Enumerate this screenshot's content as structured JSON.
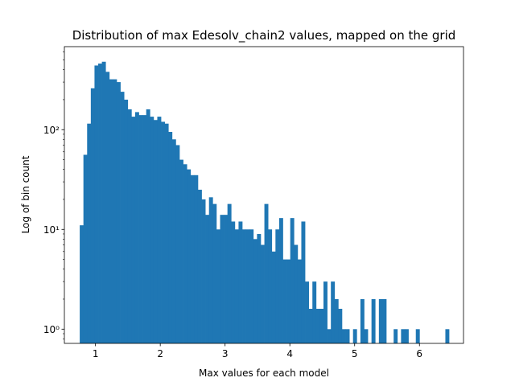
{
  "chart_data": {
    "type": "bar",
    "title": "Distribution of max Edesolv_chain2 values, mapped on the grid",
    "xlabel": "Max values for each model",
    "ylabel": "Log of bin count",
    "xlim": [
      0.52,
      6.68
    ],
    "ylim": [
      0.72,
      680
    ],
    "yscale": "log",
    "color": "#1f77b4",
    "grid": false,
    "xticks": [
      1,
      2,
      3,
      4,
      5,
      6
    ],
    "xtick_labels": [
      "1",
      "2",
      "3",
      "4",
      "5",
      "6"
    ],
    "yticks": [
      1,
      10,
      100
    ],
    "ytick_labels": [
      "10⁰",
      "10¹",
      "10²"
    ],
    "bin_edges": [
      0.757,
      0.814,
      0.871,
      0.928,
      0.985,
      1.042,
      1.099,
      1.156,
      1.213,
      1.27,
      1.327,
      1.384,
      1.441,
      1.498,
      1.555,
      1.612,
      1.669,
      1.726,
      1.783,
      1.84,
      1.897,
      1.954,
      2.011,
      2.068,
      2.125,
      2.182,
      2.239,
      2.296,
      2.353,
      2.41,
      2.467,
      2.524,
      2.581,
      2.638,
      2.695,
      2.752,
      2.809,
      2.866,
      2.923,
      2.98,
      3.037,
      3.094,
      3.151,
      3.208,
      3.265,
      3.322,
      3.379,
      3.436,
      3.493,
      3.55,
      3.607,
      3.664,
      3.721,
      3.778,
      3.835,
      3.892,
      3.949,
      4.006,
      4.063,
      4.12,
      4.177,
      4.234,
      4.291,
      4.348,
      4.405,
      4.462,
      4.519,
      4.576,
      4.633,
      4.69,
      4.747,
      4.804,
      4.861,
      4.918,
      4.975,
      5.032,
      5.089,
      5.146,
      5.203,
      5.26,
      5.317,
      5.374,
      5.431,
      5.488,
      5.545,
      5.602,
      5.659,
      5.716,
      5.773,
      5.83,
      5.887,
      5.944,
      6.001,
      6.058,
      6.115,
      6.172,
      6.229,
      6.286,
      6.343,
      6.4,
      6.457
    ],
    "counts": [
      11,
      56,
      115,
      260,
      440,
      460,
      480,
      380,
      320,
      320,
      300,
      240,
      200,
      160,
      135,
      150,
      140,
      140,
      160,
      135,
      125,
      135,
      120,
      115,
      95,
      80,
      70,
      50,
      45,
      40,
      35,
      35,
      25,
      20,
      14,
      21,
      18,
      10,
      14,
      14,
      18,
      12,
      10,
      12,
      10,
      10,
      10,
      8,
      9,
      7,
      18,
      10,
      6,
      10,
      13,
      5,
      5,
      13,
      7,
      5,
      12,
      3,
      1.6,
      3,
      1.6,
      1.6,
      3,
      1,
      3,
      2,
      1.6,
      1,
      1,
      0,
      1,
      0,
      2,
      1,
      0,
      2,
      0,
      2,
      2,
      0,
      0,
      1,
      0,
      1,
      1,
      0,
      0,
      1,
      0,
      0,
      0,
      0,
      0,
      0,
      0,
      1
    ]
  }
}
